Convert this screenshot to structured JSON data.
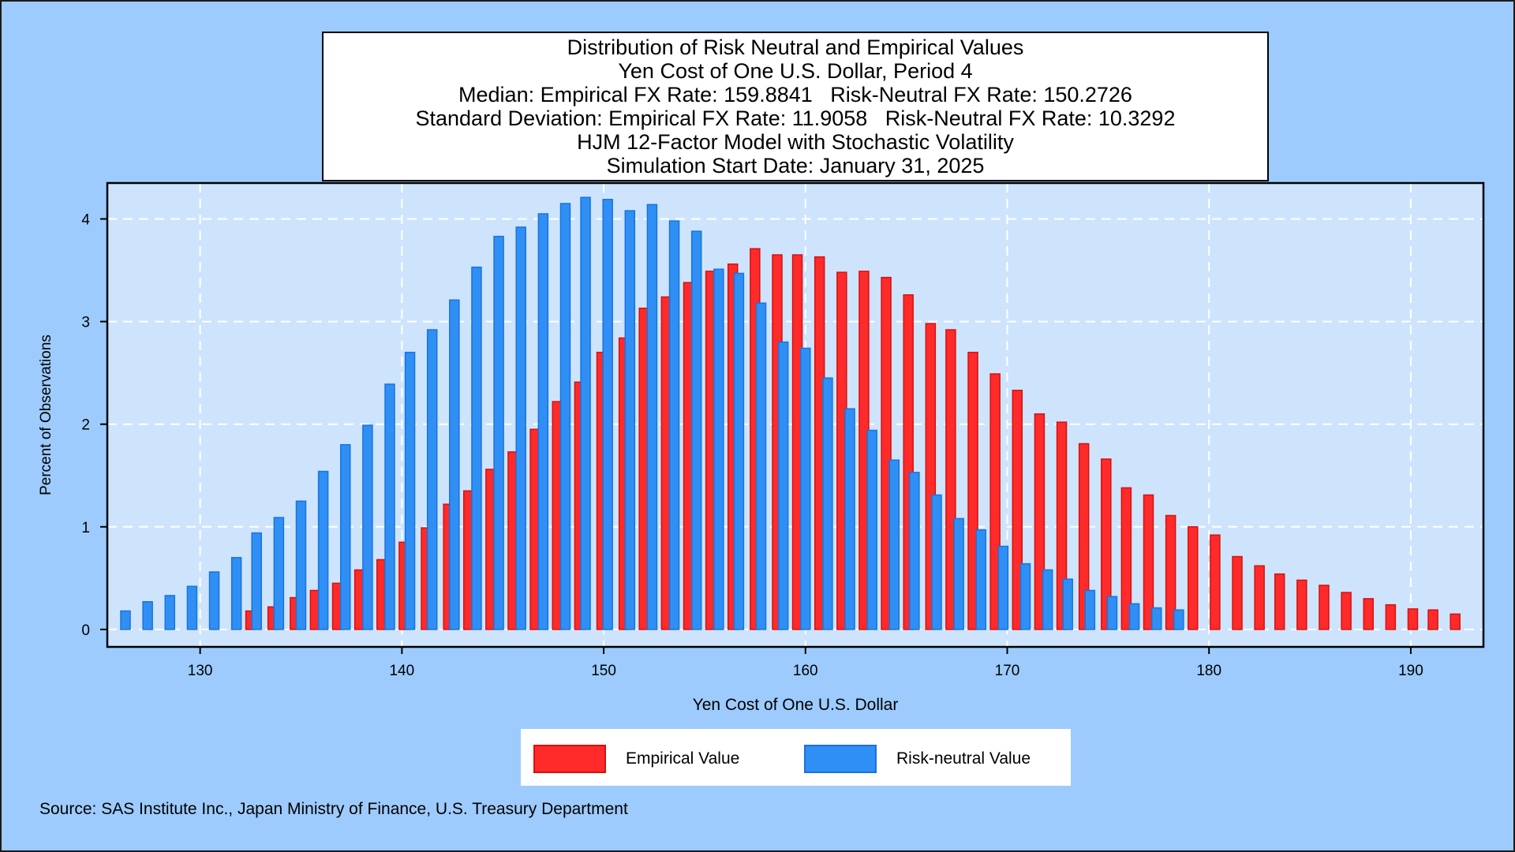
{
  "title_lines": [
    "Distribution of Risk Neutral and Empirical Values",
    "Yen Cost of One U.S. Dollar, Period 4",
    "Median: Empirical FX Rate: 159.8841   Risk-Neutral FX Rate: 150.2726",
    "Standard Deviation: Empirical FX Rate: 11.9058   Risk-Neutral FX Rate: 10.3292",
    "HJM 12-Factor Model with Stochastic Volatility",
    "Simulation Start Date: January 31, 2025"
  ],
  "source": "Source: SAS Institute Inc., Japan Ministry of Finance, U.S. Treasury Department",
  "colors": {
    "page_background": "#9dcbfd",
    "plot_background": "#cde4fc",
    "empirical": "#ff2a2a",
    "empirical_edge": "#d81010",
    "risk_neutral": "#2f8ff5",
    "risk_neutral_edge": "#1a73dc",
    "grid": "#ffffff"
  },
  "chart_data": {
    "type": "bar",
    "xlabel": "Yen Cost of One U.S. Dollar",
    "ylabel": "Percent of Observations",
    "xlim": [
      125.4,
      193.6
    ],
    "ylim": [
      -0.17,
      4.35
    ],
    "xticks": [
      130,
      140,
      150,
      160,
      170,
      180,
      190
    ],
    "yticks": [
      0,
      1,
      2,
      3,
      4
    ],
    "grid": true,
    "legend_position": "bottom-center",
    "series": [
      {
        "name": "Empirical Value",
        "x": [
          132.5,
          133.6,
          134.7,
          135.7,
          136.8,
          137.9,
          139.0,
          140.1,
          141.2,
          142.3,
          143.3,
          144.4,
          145.5,
          146.6,
          147.7,
          148.8,
          149.9,
          151.0,
          152.0,
          153.1,
          154.2,
          155.3,
          156.4,
          157.5,
          158.6,
          159.6,
          160.7,
          161.8,
          162.9,
          164.0,
          165.1,
          166.2,
          167.2,
          168.3,
          169.4,
          170.5,
          171.6,
          172.7,
          173.8,
          174.9,
          175.9,
          177.0,
          178.1,
          179.2,
          180.3,
          181.4,
          182.5,
          183.5,
          184.6,
          185.7,
          186.8,
          187.9,
          189.0,
          190.1,
          191.1,
          192.2
        ],
        "values": [
          0.18,
          0.22,
          0.31,
          0.38,
          0.45,
          0.58,
          0.68,
          0.85,
          0.99,
          1.22,
          1.35,
          1.56,
          1.73,
          1.95,
          2.22,
          2.41,
          2.7,
          2.84,
          3.13,
          3.24,
          3.38,
          3.49,
          3.56,
          3.71,
          3.65,
          3.65,
          3.63,
          3.48,
          3.49,
          3.43,
          3.26,
          2.98,
          2.92,
          2.7,
          2.49,
          2.33,
          2.1,
          2.02,
          1.81,
          1.66,
          1.38,
          1.31,
          1.11,
          1.0,
          0.92,
          0.71,
          0.62,
          0.54,
          0.48,
          0.43,
          0.36,
          0.3,
          0.24,
          0.2,
          0.19,
          0.15
        ]
      },
      {
        "name": "Risk-neutral Value",
        "x": [
          126.3,
          127.4,
          128.5,
          129.6,
          130.7,
          131.8,
          132.8,
          133.9,
          135.0,
          136.1,
          137.2,
          138.3,
          139.4,
          140.4,
          141.5,
          142.6,
          143.7,
          144.8,
          145.9,
          147.0,
          148.1,
          149.1,
          150.2,
          151.3,
          152.4,
          153.5,
          154.6,
          155.7,
          156.7,
          157.8,
          158.9,
          160.0,
          161.1,
          162.2,
          163.3,
          164.4,
          165.4,
          166.5,
          167.6,
          168.7,
          169.8,
          170.9,
          172.0,
          173.0,
          174.1,
          175.2,
          176.3,
          177.4,
          178.5
        ],
        "values": [
          0.18,
          0.27,
          0.33,
          0.42,
          0.56,
          0.7,
          0.94,
          1.09,
          1.25,
          1.54,
          1.8,
          1.99,
          2.39,
          2.7,
          2.92,
          3.21,
          3.53,
          3.83,
          3.92,
          4.05,
          4.15,
          4.21,
          4.19,
          4.08,
          4.14,
          3.98,
          3.88,
          3.51,
          3.47,
          3.18,
          2.8,
          2.74,
          2.45,
          2.15,
          1.94,
          1.65,
          1.53,
          1.31,
          1.08,
          0.97,
          0.81,
          0.64,
          0.58,
          0.49,
          0.38,
          0.32,
          0.25,
          0.21,
          0.19
        ]
      }
    ]
  }
}
